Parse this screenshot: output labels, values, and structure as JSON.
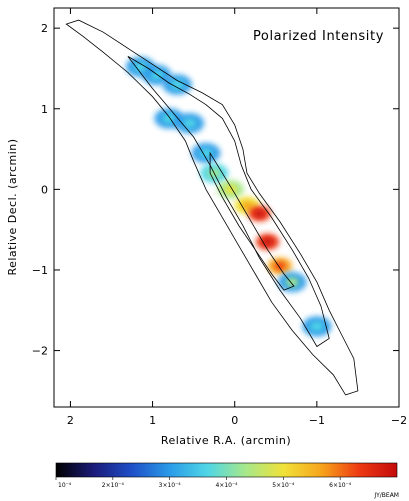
{
  "chart_data": {
    "type": "heatmap",
    "title": "Polarized Intensity",
    "xlabel": "Relative R.A. (arcmin)",
    "ylabel": "Relative Decl. (arcmin)",
    "xlim": [
      2.2,
      -2.0
    ],
    "ylim": [
      -2.7,
      2.25
    ],
    "x_ticks": [
      2,
      1,
      0,
      -1,
      -2
    ],
    "y_ticks": [
      2,
      1,
      0,
      -1,
      -2
    ],
    "x_tick_labels": [
      "2",
      "1",
      "0",
      "−1",
      "−2"
    ],
    "y_tick_labels": [
      "2",
      "1",
      "0",
      "−1",
      "−2"
    ],
    "colorbar": {
      "range": [
        0.0001,
        0.0007
      ],
      "tick_values": [
        0.0001,
        0.0002,
        0.0003,
        0.0004,
        0.0005,
        0.0006
      ],
      "tick_labels": [
        "10⁻⁴",
        "2×10⁻⁴",
        "3×10⁻⁴",
        "4×10⁻⁴",
        "5×10⁻⁴",
        "6×10⁻⁴"
      ],
      "unit": "JY/BEAM",
      "colors": [
        "#000000",
        "#1b1b7a",
        "#1e4fc8",
        "#2a9be8",
        "#4fd6e6",
        "#a6e88a",
        "#f0e23a",
        "#f7a51c",
        "#ee3a12",
        "#c40a0a"
      ]
    },
    "clumps": [
      {
        "x": 0.95,
        "y": 1.42,
        "level": 0.3
      },
      {
        "x": 0.7,
        "y": 1.3,
        "level": 0.28
      },
      {
        "x": 1.15,
        "y": 1.52,
        "level": 0.32
      },
      {
        "x": 0.8,
        "y": 0.88,
        "level": 0.28
      },
      {
        "x": 0.55,
        "y": 0.82,
        "level": 0.3
      },
      {
        "x": 0.35,
        "y": 0.45,
        "level": 0.32
      },
      {
        "x": 0.25,
        "y": 0.2,
        "level": 0.4
      },
      {
        "x": 0.05,
        "y": 0.0,
        "level": 0.55
      },
      {
        "x": -0.15,
        "y": -0.2,
        "level": 0.65
      },
      {
        "x": -0.3,
        "y": -0.3,
        "level": 0.92
      },
      {
        "x": -0.4,
        "y": -0.65,
        "level": 0.85
      },
      {
        "x": -0.55,
        "y": -0.95,
        "level": 0.75
      },
      {
        "x": -0.7,
        "y": -1.15,
        "level": 0.35
      },
      {
        "x": -1.0,
        "y": -1.7,
        "level": 0.3
      }
    ],
    "contours": [
      {
        "points": [
          [
            2.05,
            2.05
          ],
          [
            1.9,
            2.1
          ],
          [
            1.6,
            1.95
          ],
          [
            1.3,
            1.75
          ],
          [
            1.0,
            1.55
          ],
          [
            0.7,
            1.35
          ],
          [
            0.4,
            1.2
          ],
          [
            0.15,
            1.05
          ],
          [
            0.0,
            0.8
          ],
          [
            -0.1,
            0.5
          ],
          [
            -0.15,
            0.2
          ],
          [
            -0.3,
            -0.05
          ],
          [
            -0.55,
            -0.4
          ],
          [
            -0.8,
            -0.8
          ],
          [
            -1.0,
            -1.15
          ],
          [
            -1.15,
            -1.5
          ],
          [
            -1.3,
            -1.8
          ],
          [
            -1.45,
            -2.1
          ],
          [
            -1.5,
            -2.5
          ],
          [
            -1.35,
            -2.55
          ],
          [
            -1.2,
            -2.3
          ],
          [
            -0.95,
            -2.05
          ],
          [
            -0.7,
            -1.75
          ],
          [
            -0.45,
            -1.4
          ],
          [
            -0.25,
            -1.05
          ],
          [
            -0.05,
            -0.7
          ],
          [
            0.15,
            -0.35
          ],
          [
            0.35,
            0.0
          ],
          [
            0.5,
            0.35
          ],
          [
            0.6,
            0.6
          ],
          [
            0.8,
            0.9
          ],
          [
            1.0,
            1.15
          ],
          [
            1.3,
            1.45
          ],
          [
            1.6,
            1.7
          ],
          [
            1.85,
            1.9
          ],
          [
            2.05,
            2.05
          ]
        ]
      },
      {
        "points": [
          [
            1.3,
            1.65
          ],
          [
            1.05,
            1.5
          ],
          [
            0.8,
            1.32
          ],
          [
            0.55,
            1.18
          ],
          [
            0.35,
            1.05
          ],
          [
            0.15,
            0.88
          ],
          [
            0.0,
            0.6
          ],
          [
            -0.08,
            0.3
          ],
          [
            -0.2,
            0.0
          ],
          [
            -0.45,
            -0.35
          ],
          [
            -0.7,
            -0.75
          ],
          [
            -0.9,
            -1.1
          ],
          [
            -1.05,
            -1.45
          ],
          [
            -1.15,
            -1.85
          ],
          [
            -1.0,
            -1.95
          ],
          [
            -0.8,
            -1.6
          ],
          [
            -0.55,
            -1.25
          ],
          [
            -0.3,
            -0.85
          ],
          [
            -0.1,
            -0.45
          ],
          [
            0.1,
            -0.1
          ],
          [
            0.3,
            0.3
          ],
          [
            0.5,
            0.65
          ],
          [
            0.75,
            0.95
          ],
          [
            1.0,
            1.25
          ],
          [
            1.3,
            1.65
          ]
        ]
      },
      {
        "points": [
          [
            0.3,
            0.45
          ],
          [
            0.15,
            0.2
          ],
          [
            0.0,
            -0.05
          ],
          [
            -0.2,
            -0.4
          ],
          [
            -0.4,
            -0.75
          ],
          [
            -0.6,
            -1.05
          ],
          [
            -0.72,
            -1.2
          ],
          [
            -0.6,
            -1.25
          ],
          [
            -0.45,
            -1.05
          ],
          [
            -0.25,
            -0.75
          ],
          [
            -0.05,
            -0.45
          ],
          [
            0.15,
            -0.1
          ],
          [
            0.3,
            0.2
          ],
          [
            0.3,
            0.45
          ]
        ]
      }
    ]
  }
}
